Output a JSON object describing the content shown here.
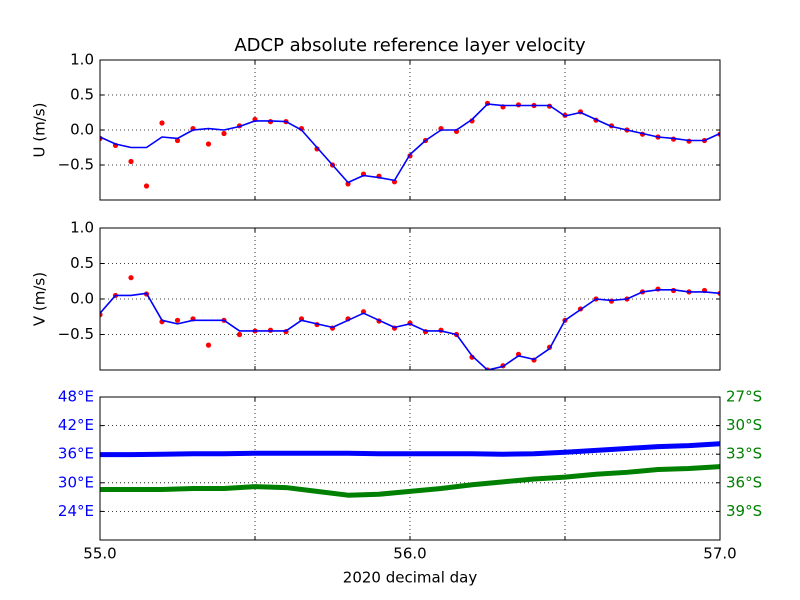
{
  "chart_data": [
    {
      "type": "line",
      "title": "ADCP absolute reference layer velocity",
      "ylabel": "U (m/s)",
      "x": [
        55.0,
        55.05,
        55.1,
        55.15,
        55.2,
        55.25,
        55.3,
        55.35,
        55.4,
        55.45,
        55.5,
        55.55,
        55.6,
        55.65,
        55.7,
        55.75,
        55.8,
        55.85,
        55.9,
        55.95,
        56.0,
        56.05,
        56.1,
        56.15,
        56.2,
        56.25,
        56.3,
        56.35,
        56.4,
        56.45,
        56.5,
        56.55,
        56.6,
        56.65,
        56.7,
        56.75,
        56.8,
        56.85,
        56.9,
        56.95,
        57.0
      ],
      "series": [
        {
          "kind": "scatter",
          "color": "#ff0000",
          "values": [
            -0.12,
            -0.22,
            -0.45,
            -0.8,
            0.1,
            -0.15,
            0.02,
            -0.2,
            -0.05,
            0.06,
            0.15,
            0.12,
            0.12,
            0.02,
            -0.27,
            -0.5,
            -0.77,
            -0.63,
            -0.66,
            -0.74,
            -0.37,
            -0.15,
            0.02,
            -0.02,
            0.13,
            0.38,
            0.33,
            0.36,
            0.35,
            0.34,
            0.21,
            0.26,
            0.14,
            0.06,
            0.0,
            -0.06,
            -0.1,
            -0.13,
            -0.16,
            -0.15,
            -0.06
          ]
        },
        {
          "kind": "line",
          "color": "#0000ff",
          "values": [
            -0.1,
            -0.2,
            -0.25,
            -0.25,
            -0.1,
            -0.12,
            0.0,
            0.02,
            0.0,
            0.05,
            0.13,
            0.13,
            0.12,
            0.0,
            -0.25,
            -0.5,
            -0.75,
            -0.65,
            -0.68,
            -0.72,
            -0.35,
            -0.15,
            0.0,
            0.0,
            0.15,
            0.37,
            0.35,
            0.35,
            0.35,
            0.35,
            0.2,
            0.25,
            0.15,
            0.05,
            0.0,
            -0.05,
            -0.1,
            -0.12,
            -0.15,
            -0.15,
            -0.05
          ]
        }
      ],
      "xlim": [
        55,
        57
      ],
      "xticks": [
        55,
        55.5,
        56,
        56.5,
        57
      ],
      "ylim": [
        -1,
        1
      ],
      "yticks": [
        {
          "value": -0.5,
          "label": "−0.5"
        },
        {
          "value": 0,
          "label": "0.0"
        },
        0.5,
        {
          "value": 1,
          "label": "1.0"
        }
      ],
      "grid": true
    },
    {
      "type": "line",
      "ylabel": "V (m/s)",
      "x": [
        55.0,
        55.05,
        55.1,
        55.15,
        55.2,
        55.25,
        55.3,
        55.35,
        55.4,
        55.45,
        55.5,
        55.55,
        55.6,
        55.65,
        55.7,
        55.75,
        55.8,
        55.85,
        55.9,
        55.95,
        56.0,
        56.05,
        56.1,
        56.15,
        56.2,
        56.25,
        56.3,
        56.35,
        56.4,
        56.45,
        56.5,
        56.55,
        56.6,
        56.65,
        56.7,
        56.75,
        56.8,
        56.85,
        56.9,
        56.95,
        57.0
      ],
      "series": [
        {
          "kind": "scatter",
          "color": "#ff0000",
          "values": [
            -0.22,
            0.05,
            0.3,
            0.07,
            -0.32,
            -0.3,
            -0.28,
            -0.65,
            -0.3,
            -0.5,
            -0.45,
            -0.44,
            -0.46,
            -0.28,
            -0.36,
            -0.41,
            -0.28,
            -0.18,
            -0.31,
            -0.41,
            -0.34,
            -0.46,
            -0.44,
            -0.5,
            -0.82,
            -1.0,
            -0.94,
            -0.78,
            -0.86,
            -0.68,
            -0.3,
            -0.14,
            0.0,
            -0.03,
            0.0,
            0.1,
            0.14,
            0.12,
            0.1,
            0.12,
            0.08
          ]
        },
        {
          "kind": "line",
          "color": "#0000ff",
          "values": [
            -0.2,
            0.05,
            0.05,
            0.08,
            -0.3,
            -0.35,
            -0.3,
            -0.3,
            -0.3,
            -0.45,
            -0.45,
            -0.45,
            -0.45,
            -0.3,
            -0.35,
            -0.4,
            -0.3,
            -0.2,
            -0.3,
            -0.4,
            -0.35,
            -0.45,
            -0.45,
            -0.5,
            -0.8,
            -1.0,
            -0.95,
            -0.8,
            -0.85,
            -0.7,
            -0.3,
            -0.15,
            0.0,
            -0.02,
            0.0,
            0.1,
            0.13,
            0.13,
            0.1,
            0.1,
            0.08
          ]
        }
      ],
      "xlim": [
        55,
        57
      ],
      "xticks": [
        55,
        55.5,
        56,
        56.5,
        57
      ],
      "ylim": [
        -1,
        1
      ],
      "yticks": [
        {
          "value": -0.5,
          "label": "−0.5"
        },
        {
          "value": 0,
          "label": "0.0"
        },
        0.5,
        {
          "value": 1,
          "label": "1.0"
        }
      ],
      "grid": true
    },
    {
      "type": "line",
      "xlabel": "2020 decimal day",
      "x": [
        55.0,
        55.1,
        55.2,
        55.3,
        55.4,
        55.5,
        55.6,
        55.7,
        55.8,
        55.9,
        56.0,
        56.1,
        56.2,
        56.3,
        56.4,
        56.5,
        56.6,
        56.7,
        56.8,
        56.9,
        57.0
      ],
      "series": [
        {
          "kind": "line",
          "color": "#0000ff",
          "values": [
            35.9,
            35.9,
            36.0,
            36.1,
            36.1,
            36.2,
            36.2,
            36.2,
            36.2,
            36.1,
            36.1,
            36.1,
            36.1,
            36.0,
            36.1,
            36.4,
            36.8,
            37.2,
            37.6,
            37.8,
            38.2
          ]
        },
        {
          "kind": "line",
          "color": "#008000",
          "axis": "y2",
          "values": [
            -36.7,
            -36.7,
            -36.7,
            -36.6,
            -36.6,
            -36.4,
            -36.5,
            -36.9,
            -37.3,
            -37.2,
            -36.9,
            -36.6,
            -36.2,
            -35.9,
            -35.6,
            -35.4,
            -35.1,
            -34.9,
            -34.6,
            -34.5,
            -34.3
          ]
        }
      ],
      "xlim": [
        55,
        57
      ],
      "xticks": [
        {
          "value": 55,
          "label": "55.0"
        },
        55.5,
        {
          "value": 56,
          "label": "56.0"
        },
        56.5,
        {
          "value": 57,
          "label": "57.0"
        }
      ],
      "ylim": [
        18,
        48
      ],
      "yticks": [
        {
          "value": 24,
          "label": "24°E"
        },
        {
          "value": 30,
          "label": "30°E"
        },
        {
          "value": 36,
          "label": "36°E"
        },
        {
          "value": 42,
          "label": "42°E"
        },
        {
          "value": 48,
          "label": "48°E"
        }
      ],
      "y2lim": [
        -42,
        -27
      ],
      "y2ticks": [
        {
          "value": -39,
          "label": "39°S"
        },
        {
          "value": -36,
          "label": "36°S"
        },
        {
          "value": -33,
          "label": "33°S"
        },
        {
          "value": -30,
          "label": "30°S"
        },
        {
          "value": -27,
          "label": "27°S"
        }
      ],
      "ytick_color": "#0000ff",
      "y2tick_color": "#008000",
      "grid": true
    }
  ]
}
